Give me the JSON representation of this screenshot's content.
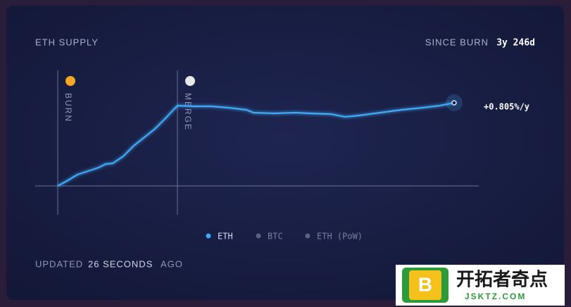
{
  "chart_data": {
    "type": "line",
    "title": "ETH SUPPLY",
    "since_label": "SINCE BURN",
    "since_value": "3y 246d",
    "x": [
      0,
      13,
      28,
      43,
      58,
      68,
      78,
      93,
      108,
      123,
      138,
      153,
      170,
      193,
      218,
      243,
      268,
      278,
      308,
      338,
      358,
      388,
      408,
      428,
      458,
      488,
      518,
      543,
      563
    ],
    "xlim": [
      -32,
      598
    ],
    "ylim": [
      -41,
      164
    ],
    "series": [
      {
        "name": "ETH",
        "color": "#3fa9f5",
        "values": [
          0,
          7,
          16,
          21,
          26,
          31,
          32,
          42,
          57,
          69,
          81,
          96,
          114,
          113,
          113,
          111,
          108,
          104,
          103,
          104,
          103,
          102,
          98,
          100,
          104,
          108,
          111,
          114,
          118
        ]
      }
    ],
    "inactive_series": [
      "BTC",
      "ETH (PoW)"
    ],
    "end_label": "+0.805%/y",
    "events": [
      {
        "label": "BURN",
        "x": 0
      },
      {
        "label": "MERGE",
        "x": 170
      }
    ],
    "footer": [
      "UPDATED",
      "26 SECONDS",
      "AGO"
    ]
  },
  "watermark": {
    "title": "开拓者奇点",
    "url": "JSKTZ.COM"
  }
}
